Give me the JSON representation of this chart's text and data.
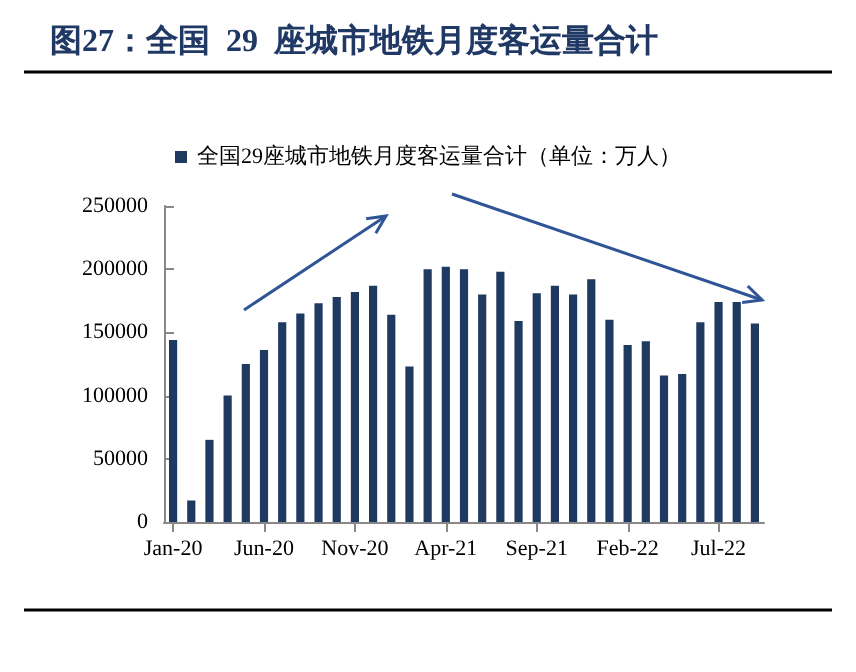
{
  "chart_data": {
    "type": "bar",
    "title": "图27：全国  29  座城市地铁月度客运量合计",
    "categories": [
      "Jan-20",
      null,
      null,
      null,
      null,
      "Jun-20",
      null,
      null,
      null,
      null,
      "Nov-20",
      null,
      null,
      null,
      null,
      "Apr-21",
      null,
      null,
      null,
      null,
      "Sep-21",
      null,
      null,
      null,
      null,
      "Feb-22",
      null,
      null,
      null,
      null,
      "Jul-22",
      null,
      null
    ],
    "series": [
      {
        "name": "全国29座城市地铁月度客运量合计（单位：万人）",
        "color": "#1f3a60",
        "values": [
          144000,
          17000,
          65000,
          100000,
          125000,
          136000,
          158000,
          165000,
          173000,
          178000,
          182000,
          187000,
          164000,
          123000,
          200000,
          202000,
          200000,
          180000,
          198000,
          159000,
          181000,
          187000,
          180000,
          192000,
          160000,
          140000,
          143000,
          116000,
          117000,
          158000,
          174000,
          174000,
          157000
        ]
      }
    ],
    "ylim": [
      0,
      250000
    ],
    "yticks": [
      0,
      50000,
      100000,
      150000,
      200000,
      250000
    ],
    "grid": false,
    "legend": "top"
  }
}
